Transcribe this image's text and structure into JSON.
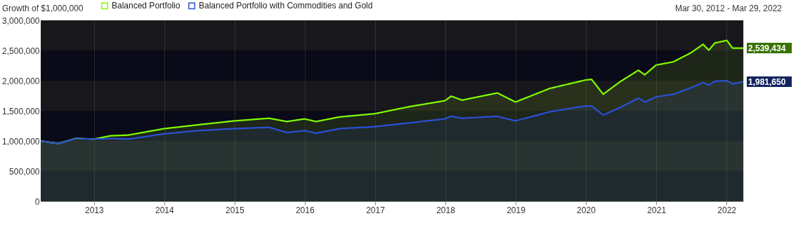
{
  "chart_data": {
    "type": "area",
    "title": "Growth of $1,000,000",
    "subtitle": "Mar 30, 2012 - Mar 29, 2022",
    "x": [
      "2012-03-30",
      "2012-06-29",
      "2012-09-28",
      "2012-12-31",
      "2013-03-28",
      "2013-06-28",
      "2013-12-31",
      "2014-06-30",
      "2014-12-31",
      "2015-06-30",
      "2015-09-30",
      "2015-12-31",
      "2016-02-29",
      "2016-06-30",
      "2016-12-30",
      "2017-06-30",
      "2017-12-29",
      "2018-01-31",
      "2018-03-29",
      "2018-09-28",
      "2018-12-31",
      "2019-06-28",
      "2019-12-31",
      "2020-01-31",
      "2020-03-31",
      "2020-06-30",
      "2020-09-30",
      "2020-11-02",
      "2020-12-31",
      "2021-03-31",
      "2021-06-30",
      "2021-09-01",
      "2021-10-01",
      "2021-11-01",
      "2022-01-03",
      "2022-02-01",
      "2022-03-29"
    ],
    "series": [
      {
        "name": "Balanced Portfolio",
        "color": "#80ff00",
        "values": [
          1000000,
          957000,
          1043000,
          1030000,
          1086000,
          1097000,
          1204000,
          1269000,
          1333000,
          1376000,
          1322000,
          1365000,
          1322000,
          1398000,
          1452000,
          1570000,
          1667000,
          1742000,
          1677000,
          1796000,
          1645000,
          1871000,
          2011000,
          2021000,
          1774000,
          1989000,
          2172000,
          2097000,
          2258000,
          2312000,
          2462000,
          2602000,
          2505000,
          2624000,
          2667000,
          2538000,
          2539434
        ]
      },
      {
        "name": "Balanced Portfolio with Commodities and Gold",
        "color": "#2a50d8",
        "values": [
          1000000,
          957000,
          1043000,
          1030000,
          1040000,
          1030000,
          1118000,
          1172000,
          1204000,
          1226000,
          1140000,
          1172000,
          1129000,
          1204000,
          1237000,
          1301000,
          1366000,
          1409000,
          1376000,
          1409000,
          1333000,
          1484000,
          1581000,
          1581000,
          1430000,
          1559000,
          1710000,
          1645000,
          1731000,
          1774000,
          1882000,
          1968000,
          1925000,
          1989000,
          2000000,
          1946000,
          1981650
        ]
      }
    ],
    "annotations": [
      {
        "text": "2,539,434",
        "x": "2022-03-29",
        "y": 2539434
      },
      {
        "text": "1,981,650",
        "x": "2022-03-29",
        "y": 1981650
      }
    ],
    "xlim": [
      "2012-03-30",
      "2022-03-29"
    ],
    "xticks": [
      {
        "value": "2013-01-01",
        "label": "2013"
      },
      {
        "value": "2014-01-01",
        "label": "2014"
      },
      {
        "value": "2015-01-01",
        "label": "2015"
      },
      {
        "value": "2016-01-01",
        "label": "2016"
      },
      {
        "value": "2017-01-01",
        "label": "2017"
      },
      {
        "value": "2018-01-01",
        "label": "2018"
      },
      {
        "value": "2019-01-01",
        "label": "2019"
      },
      {
        "value": "2020-01-01",
        "label": "2020"
      },
      {
        "value": "2021-01-01",
        "label": "2021"
      },
      {
        "value": "2022-01-01",
        "label": "2022"
      }
    ],
    "ylim": [
      0,
      3000000
    ],
    "yticks": [
      {
        "value": 0,
        "label": "0"
      },
      {
        "value": 500000,
        "label": "500,000"
      },
      {
        "value": 1000000,
        "label": "1,000,000"
      },
      {
        "value": 1500000,
        "label": "1,500,000"
      },
      {
        "value": 2000000,
        "label": "2,000,000"
      },
      {
        "value": 2500000,
        "label": "2,500,000"
      },
      {
        "value": 3000000,
        "label": "3,000,000"
      }
    ],
    "bands": [
      {
        "axis": "y",
        "from": 0,
        "to": 500000,
        "color": "#0a0a18"
      },
      {
        "axis": "y",
        "from": 500000,
        "to": 1000000,
        "color": "#18181c"
      },
      {
        "axis": "y",
        "from": 1000000,
        "to": 1500000,
        "color": "#0a0a18"
      },
      {
        "axis": "y",
        "from": 1500000,
        "to": 2000000,
        "color": "#18181c"
      },
      {
        "axis": "y",
        "from": 2000000,
        "to": 2500000,
        "color": "#0a0a18"
      },
      {
        "axis": "y",
        "from": 2500000,
        "to": 3000000,
        "color": "#18181c"
      }
    ],
    "grid": "x",
    "legend": "top"
  }
}
